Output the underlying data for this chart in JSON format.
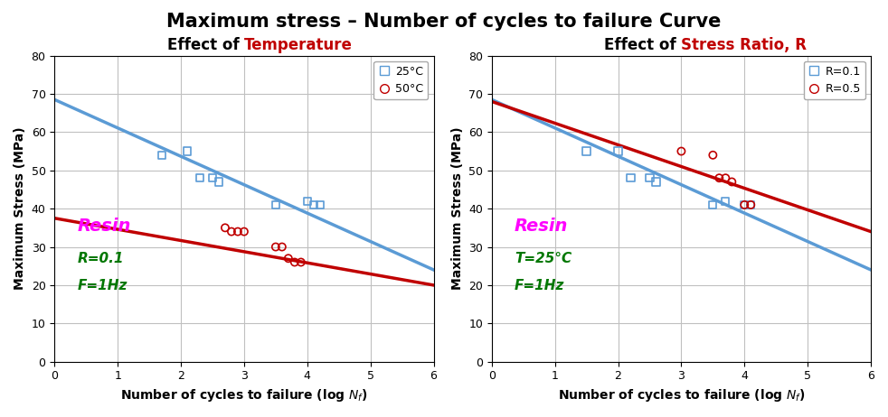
{
  "title": "Maximum stress – Number of cycles to failure Curve",
  "title_fontsize": 15,
  "xlabel": "Number of cycles to failure (log $N_f$)",
  "ylabel": "Maximum Stress (MPa)",
  "xlim": [
    0,
    6
  ],
  "ylim": [
    0,
    80
  ],
  "xticks": [
    0,
    1,
    2,
    3,
    4,
    5,
    6
  ],
  "yticks": [
    0,
    10,
    20,
    30,
    40,
    50,
    60,
    70,
    80
  ],
  "left_blue_line": {
    "x0": 0,
    "y0": 68.5,
    "x1": 6,
    "y1": 24.0
  },
  "left_red_line": {
    "x0": 0,
    "y0": 37.5,
    "x1": 6,
    "y1": 20.0
  },
  "left_blue_scatter_x": [
    1.7,
    2.1,
    2.3,
    2.5,
    2.6,
    3.5,
    4.0,
    4.1,
    4.2
  ],
  "left_blue_scatter_y": [
    54,
    55,
    48,
    48,
    47,
    41,
    42,
    41,
    41
  ],
  "left_red_scatter_x": [
    2.7,
    2.8,
    2.9,
    3.0,
    3.5,
    3.6,
    3.7,
    3.8,
    3.9
  ],
  "left_red_scatter_y": [
    35,
    34,
    34,
    34,
    30,
    30,
    27,
    26,
    26
  ],
  "right_blue_line": {
    "x0": 0,
    "y0": 68.5,
    "x1": 6,
    "y1": 24.0
  },
  "right_red_line": {
    "x0": 0,
    "y0": 68.0,
    "x1": 6,
    "y1": 34.0
  },
  "right_blue_scatter_x": [
    1.5,
    2.0,
    2.2,
    2.5,
    2.6,
    3.5,
    3.7,
    4.0,
    4.1
  ],
  "right_blue_scatter_y": [
    55,
    55,
    48,
    48,
    47,
    41,
    42,
    41,
    41
  ],
  "right_red_scatter_x": [
    3.0,
    3.5,
    3.6,
    3.7,
    3.8,
    4.0,
    4.1
  ],
  "right_red_scatter_y": [
    55,
    54,
    48,
    48,
    47,
    41,
    41
  ],
  "blue_color": "#5B9BD5",
  "red_color": "#C00000",
  "grid_color": "#C0C0C0",
  "bg_color": "#FFFFFF",
  "magenta": "#FF00FF",
  "green": "#007700"
}
